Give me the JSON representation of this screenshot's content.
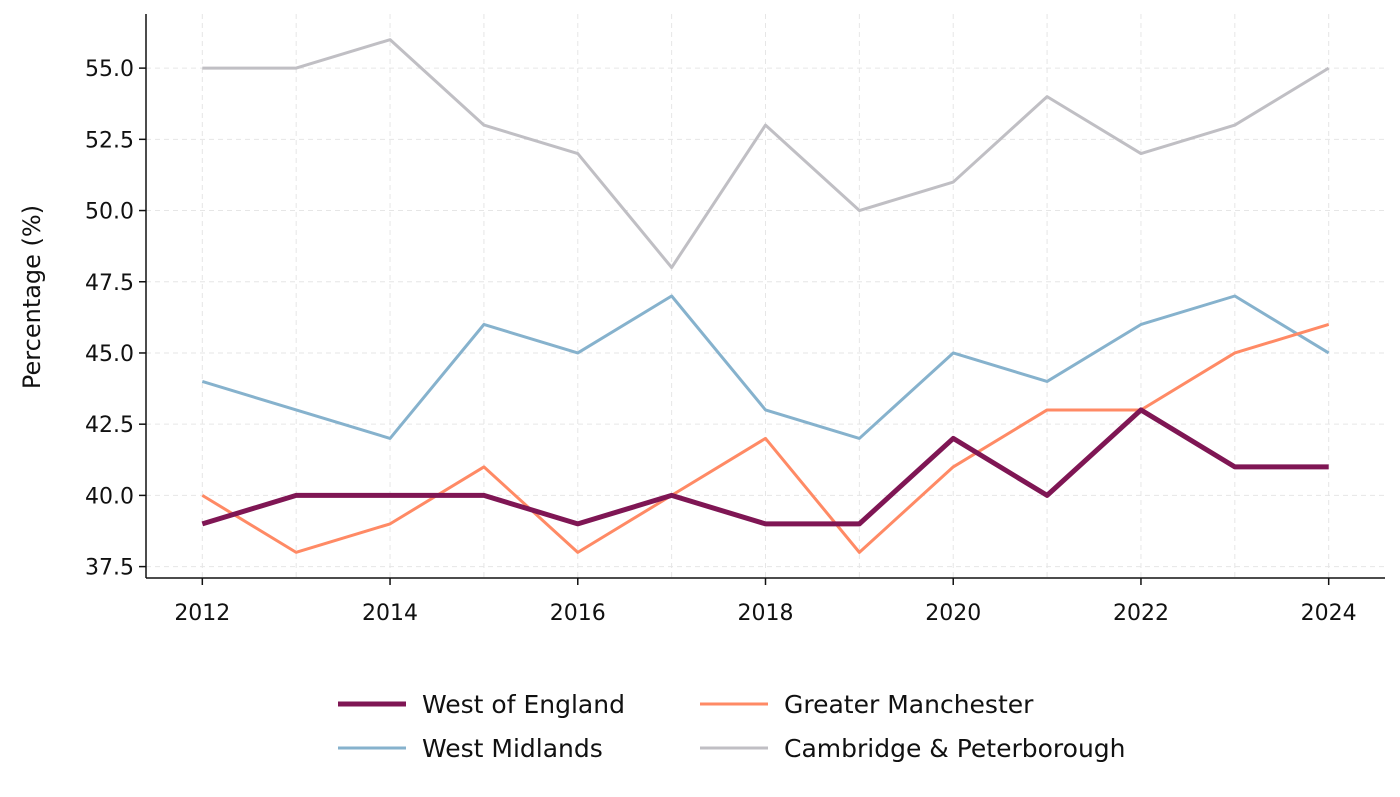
{
  "chart_data": {
    "type": "line",
    "title": "",
    "xlabel": "",
    "ylabel": "Percentage (%)",
    "x": [
      2012,
      2013,
      2014,
      2015,
      2016,
      2017,
      2018,
      2019,
      2020,
      2021,
      2022,
      2023,
      2024
    ],
    "xticks": [
      "2012",
      "2014",
      "2016",
      "2018",
      "2020",
      "2022",
      "2024"
    ],
    "yticks": [
      "37.5",
      "40.0",
      "42.5",
      "45.0",
      "47.5",
      "50.0",
      "52.5",
      "55.0"
    ],
    "xlim": [
      2011.4,
      2024.6
    ],
    "ylim": [
      37.1,
      56.9
    ],
    "grid": true,
    "legend_placement": "bottom",
    "series": [
      {
        "name": "Cambridge & Peterborough",
        "color": "#c0bfc4",
        "values": [
          55,
          55,
          56,
          53,
          52,
          48,
          53,
          50,
          51,
          54,
          52,
          53,
          55
        ]
      },
      {
        "name": "West Midlands",
        "color": "#86b2cd",
        "values": [
          44,
          43,
          42,
          46,
          45,
          47,
          43,
          42,
          45,
          44,
          46,
          47,
          45
        ]
      },
      {
        "name": "Greater Manchester",
        "color": "#ff8a65",
        "values": [
          40,
          38,
          39,
          41,
          38,
          40,
          42,
          38,
          41,
          43,
          43,
          45,
          46
        ]
      },
      {
        "name": "West of England",
        "color": "#7f1654",
        "values": [
          39,
          40,
          40,
          40,
          39,
          40,
          39,
          39,
          42,
          40,
          43,
          41,
          41
        ]
      }
    ],
    "legend_order": [
      "West of England",
      "Greater Manchester",
      "West Midlands",
      "Cambridge & Peterborough"
    ]
  }
}
